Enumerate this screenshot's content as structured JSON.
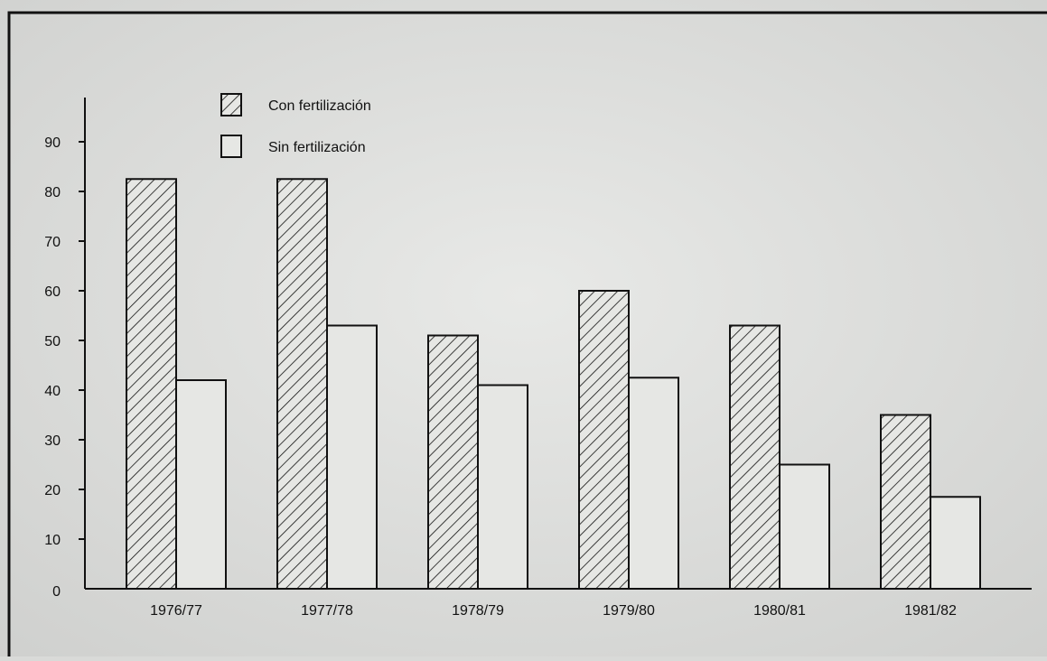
{
  "chart_data": {
    "type": "bar",
    "title": "",
    "xlabel": "",
    "ylabel": "",
    "categories": [
      "1976/77",
      "1977/78",
      "1978/79",
      "1979/80",
      "1980/81",
      "1981/82"
    ],
    "series": [
      {
        "name": "Con fertilización",
        "pattern": "hatched",
        "values": [
          82.5,
          82.5,
          51,
          60,
          53,
          35
        ]
      },
      {
        "name": "Sin fertilización",
        "pattern": "empty",
        "values": [
          42,
          53,
          41,
          42.5,
          25,
          18.5
        ]
      }
    ],
    "yticks": [
      0,
      10,
      20,
      30,
      40,
      50,
      60,
      70,
      80,
      90
    ],
    "ylim": [
      0,
      100
    ],
    "grid": false,
    "legend_position": "top-left"
  },
  "colors": {
    "paper": "#d9dad8",
    "ink": "#111111",
    "bar_fill": "#e6e7e4"
  }
}
